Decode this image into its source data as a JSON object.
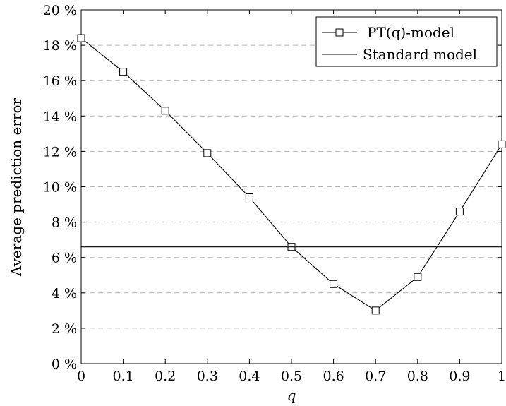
{
  "chart_data": {
    "type": "line",
    "xlabel": "q",
    "ylabel": "Average prediction error",
    "xlim": [
      0,
      1
    ],
    "ylim": [
      0,
      20
    ],
    "x_ticks": [
      "0",
      "0.1",
      "0.2",
      "0.3",
      "0.4",
      "0.5",
      "0.6",
      "0.7",
      "0.8",
      "0.9",
      "1"
    ],
    "y_ticks": [
      "0 %",
      "2 %",
      "4 %",
      "6 %",
      "8 %",
      "10 %",
      "12 %",
      "14 %",
      "16 %",
      "18 %",
      "20 %"
    ],
    "y_unit": "%",
    "grid": "horizontal dashed",
    "legend_position": "top-right",
    "series": [
      {
        "name": "PT(q)-model",
        "marker": "square",
        "color": "#000000",
        "x": [
          0,
          0.1,
          0.2,
          0.3,
          0.4,
          0.5,
          0.6,
          0.7,
          0.8,
          0.9,
          1
        ],
        "y": [
          18.4,
          16.5,
          14.3,
          11.9,
          9.4,
          6.6,
          4.5,
          3.0,
          4.9,
          8.6,
          12.4
        ]
      },
      {
        "name": "Standard model",
        "marker": "none",
        "color": "#000000",
        "x": [
          0,
          1
        ],
        "y": [
          6.6,
          6.6
        ]
      }
    ]
  }
}
